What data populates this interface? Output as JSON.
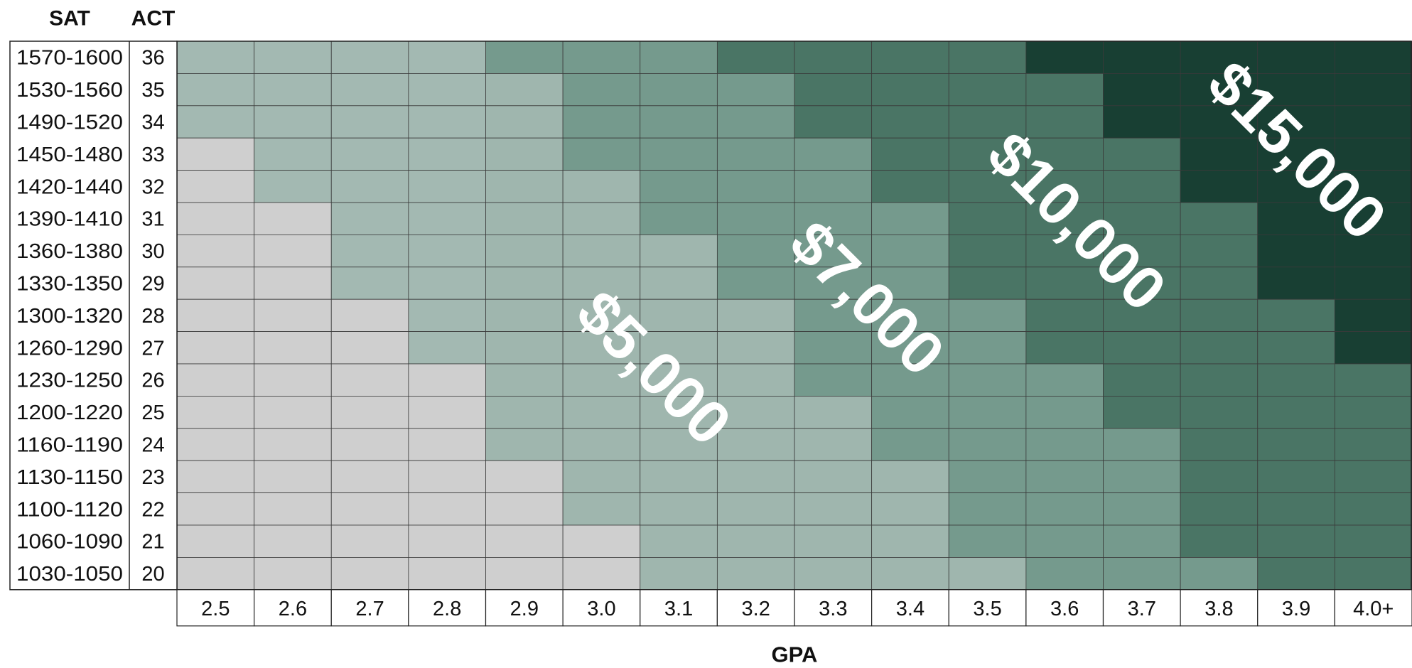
{
  "chart_data": {
    "type": "heatmap",
    "title": "",
    "xlabel": "GPA",
    "row_headers": {
      "sat": "SAT",
      "act": "ACT"
    },
    "x": [
      "2.5",
      "2.6",
      "2.7",
      "2.8",
      "2.9",
      "3.0",
      "3.1",
      "3.2",
      "3.3",
      "3.4",
      "3.5",
      "3.6",
      "3.7",
      "3.8",
      "3.9",
      "4.0+"
    ],
    "rows": [
      {
        "sat": "1570-1600",
        "act": "36"
      },
      {
        "sat": "1530-1560",
        "act": "35"
      },
      {
        "sat": "1490-1520",
        "act": "34"
      },
      {
        "sat": "1450-1480",
        "act": "33"
      },
      {
        "sat": "1420-1440",
        "act": "32"
      },
      {
        "sat": "1390-1410",
        "act": "31"
      },
      {
        "sat": "1360-1380",
        "act": "30"
      },
      {
        "sat": "1330-1350",
        "act": "29"
      },
      {
        "sat": "1300-1320",
        "act": "28"
      },
      {
        "sat": "1260-1290",
        "act": "27"
      },
      {
        "sat": "1230-1250",
        "act": "26"
      },
      {
        "sat": "1200-1220",
        "act": "25"
      },
      {
        "sat": "1160-1190",
        "act": "24"
      },
      {
        "sat": "1130-1150",
        "act": "23"
      },
      {
        "sat": "1100-1120",
        "act": "22"
      },
      {
        "sat": "1060-1090",
        "act": "21"
      },
      {
        "sat": "1030-1050",
        "act": "20"
      }
    ],
    "levels": [
      {
        "label": "",
        "color": "#cfcfcf"
      },
      {
        "label": "",
        "color": "#a3b9b2"
      },
      {
        "label": "$5,000",
        "color": "#9fb6ae"
      },
      {
        "label": "$7,000",
        "color": "#759a8d"
      },
      {
        "label": "$10,000",
        "color": "#4a7565"
      },
      {
        "label": "$15,000",
        "color": "#183f33"
      }
    ],
    "grid_levels": [
      [
        1,
        1,
        1,
        1,
        3,
        3,
        3,
        4,
        4,
        4,
        4,
        5,
        5,
        5,
        5,
        5
      ],
      [
        1,
        1,
        1,
        1,
        2,
        3,
        3,
        3,
        4,
        4,
        4,
        4,
        5,
        5,
        5,
        5
      ],
      [
        1,
        1,
        1,
        1,
        2,
        3,
        3,
        3,
        4,
        4,
        4,
        4,
        5,
        5,
        5,
        5
      ],
      [
        0,
        1,
        1,
        1,
        2,
        3,
        3,
        3,
        3,
        4,
        4,
        4,
        4,
        5,
        5,
        5
      ],
      [
        0,
        1,
        1,
        1,
        2,
        2,
        3,
        3,
        3,
        4,
        4,
        4,
        4,
        5,
        5,
        5
      ],
      [
        0,
        0,
        1,
        1,
        2,
        2,
        3,
        3,
        3,
        3,
        4,
        4,
        4,
        4,
        5,
        5
      ],
      [
        0,
        0,
        1,
        1,
        2,
        2,
        2,
        3,
        3,
        3,
        4,
        4,
        4,
        4,
        5,
        5
      ],
      [
        0,
        0,
        1,
        1,
        2,
        2,
        2,
        3,
        3,
        3,
        4,
        4,
        4,
        4,
        5,
        5
      ],
      [
        0,
        0,
        0,
        1,
        2,
        2,
        2,
        2,
        3,
        3,
        3,
        4,
        4,
        4,
        4,
        5
      ],
      [
        0,
        0,
        0,
        1,
        2,
        2,
        2,
        2,
        3,
        3,
        3,
        4,
        4,
        4,
        4,
        5
      ],
      [
        0,
        0,
        0,
        0,
        2,
        2,
        2,
        2,
        3,
        3,
        3,
        3,
        4,
        4,
        4,
        4
      ],
      [
        0,
        0,
        0,
        0,
        2,
        2,
        2,
        2,
        2,
        3,
        3,
        3,
        4,
        4,
        4,
        4
      ],
      [
        0,
        0,
        0,
        0,
        2,
        2,
        2,
        2,
        2,
        3,
        3,
        3,
        3,
        4,
        4,
        4
      ],
      [
        0,
        0,
        0,
        0,
        0,
        2,
        2,
        2,
        2,
        2,
        3,
        3,
        3,
        4,
        4,
        4
      ],
      [
        0,
        0,
        0,
        0,
        0,
        2,
        2,
        2,
        2,
        2,
        3,
        3,
        3,
        4,
        4,
        4
      ],
      [
        0,
        0,
        0,
        0,
        0,
        0,
        2,
        2,
        2,
        2,
        3,
        3,
        3,
        4,
        4,
        4
      ],
      [
        0,
        0,
        0,
        0,
        0,
        0,
        2,
        2,
        2,
        2,
        2,
        3,
        3,
        3,
        4,
        4
      ]
    ],
    "annotations": [
      "$5,000",
      "$7,000",
      "$10,000",
      "$15,000"
    ]
  }
}
